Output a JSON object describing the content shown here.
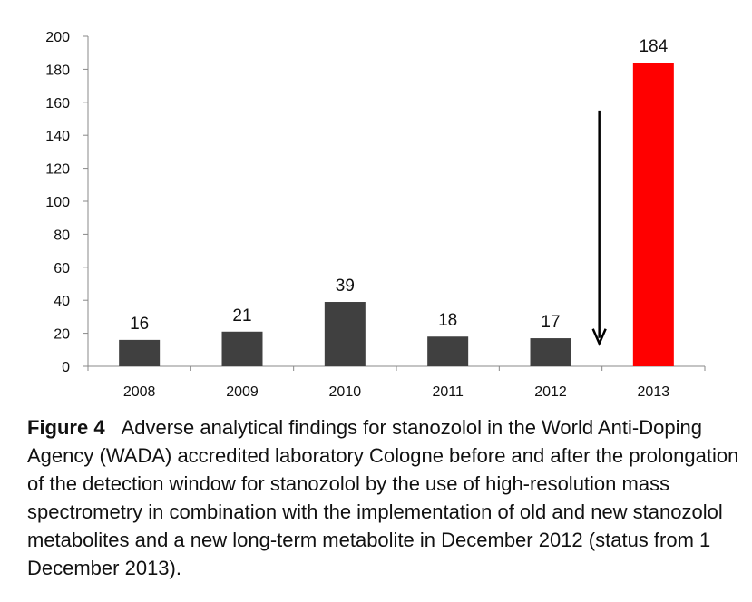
{
  "chart_data": {
    "type": "bar",
    "categories": [
      "2008",
      "2009",
      "2010",
      "2011",
      "2012",
      "2013"
    ],
    "values": [
      16,
      21,
      39,
      18,
      17,
      184
    ],
    "data_labels": [
      "16",
      "21",
      "39",
      "18",
      "17",
      "184"
    ],
    "ylim": [
      0,
      200
    ],
    "yticks": [
      "0",
      "20",
      "40",
      "60",
      "80",
      "100",
      "120",
      "140",
      "160",
      "180",
      "200"
    ],
    "grid": false,
    "colors": {
      "default_bar": "#404040",
      "highlight_bar": "#ff0000",
      "arrow": "#000000"
    },
    "highlight_category": "2013",
    "annotation": {
      "type": "downward-arrow",
      "between": [
        "2012",
        "2013"
      ],
      "from_value": 155,
      "to_value": 15
    }
  },
  "caption": {
    "label": "Figure 4",
    "text": "Adverse analytical findings for stanozolol in the World Anti-Doping Agency (WADA) accredited laboratory Cologne before and after the prolongation of the detection window for stanozolol by the use of high-resolution mass spectrometry in combination with the implementation of old and new stanozolol metabolites and a new long-term metabolite in December 2012 (status from 1 December 2013)."
  }
}
